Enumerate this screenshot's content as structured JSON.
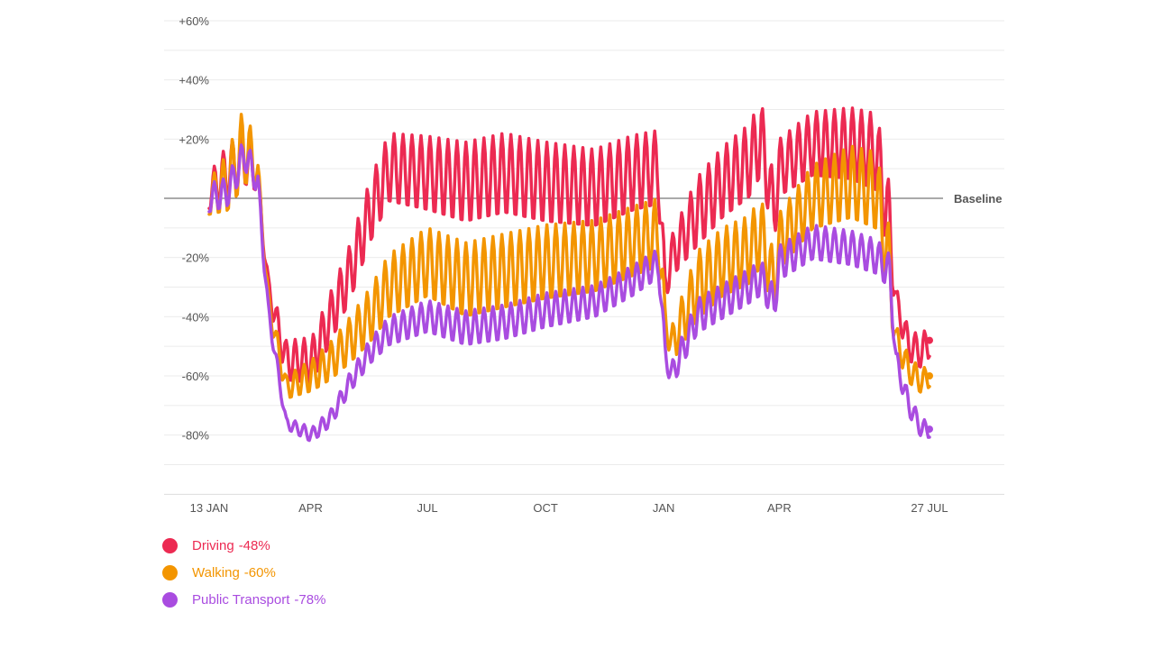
{
  "chart_data": {
    "type": "line",
    "title": "",
    "xlabel": "",
    "ylabel": "",
    "ylim": [
      -100,
      60
    ],
    "grid": true,
    "baseline_label": "Baseline",
    "yticks": [
      {
        "value": 60,
        "label": "+60%"
      },
      {
        "value": 40,
        "label": "+40%"
      },
      {
        "value": 20,
        "label": "+20%"
      },
      {
        "value": -20,
        "label": "-20%"
      },
      {
        "value": -40,
        "label": "-40%"
      },
      {
        "value": -60,
        "label": "-60%"
      },
      {
        "value": -80,
        "label": "-80%"
      }
    ],
    "xticks": [
      {
        "day": 0,
        "label": "13 JAN"
      },
      {
        "day": 79,
        "label": "APR"
      },
      {
        "day": 170,
        "label": "JUL"
      },
      {
        "day": 262,
        "label": "OCT"
      },
      {
        "day": 354,
        "label": "JAN"
      },
      {
        "day": 444,
        "label": "APR"
      },
      {
        "day": 561,
        "label": "27 JUL"
      }
    ],
    "x_range_days": [
      0,
      561
    ],
    "weekly_cycle_days": 7,
    "series": [
      {
        "name": "Driving",
        "latest": "-48%",
        "color": "#ec2a52",
        "base": [
          [
            0,
            2
          ],
          [
            14,
            8
          ],
          [
            28,
            14
          ],
          [
            38,
            6
          ],
          [
            46,
            -30
          ],
          [
            60,
            -55
          ],
          [
            80,
            -55
          ],
          [
            95,
            -40
          ],
          [
            110,
            -25
          ],
          [
            125,
            -5
          ],
          [
            140,
            10
          ],
          [
            170,
            8
          ],
          [
            200,
            5
          ],
          [
            230,
            8
          ],
          [
            262,
            5
          ],
          [
            300,
            3
          ],
          [
            330,
            8
          ],
          [
            350,
            10
          ],
          [
            355,
            -30
          ],
          [
            360,
            -20
          ],
          [
            380,
            -5
          ],
          [
            400,
            5
          ],
          [
            420,
            12
          ],
          [
            430,
            20
          ],
          [
            440,
            -5
          ],
          [
            444,
            10
          ],
          [
            470,
            18
          ],
          [
            500,
            18
          ],
          [
            520,
            15
          ],
          [
            530,
            -10
          ],
          [
            535,
            -35
          ],
          [
            545,
            -50
          ],
          [
            555,
            -52
          ],
          [
            561,
            -48
          ]
        ],
        "amp": [
          [
            0,
            6
          ],
          [
            14,
            10
          ],
          [
            28,
            10
          ],
          [
            38,
            4
          ],
          [
            46,
            4
          ],
          [
            60,
            7
          ],
          [
            100,
            9
          ],
          [
            140,
            12
          ],
          [
            200,
            14
          ],
          [
            262,
            14
          ],
          [
            350,
            13
          ],
          [
            355,
            6
          ],
          [
            380,
            12
          ],
          [
            430,
            13
          ],
          [
            444,
            10
          ],
          [
            530,
            14
          ],
          [
            535,
            5
          ],
          [
            561,
            6
          ]
        ]
      },
      {
        "name": "Walking",
        "latest": "-60%",
        "color": "#f39500",
        "base": [
          [
            0,
            0
          ],
          [
            14,
            5
          ],
          [
            28,
            18
          ],
          [
            38,
            8
          ],
          [
            46,
            -35
          ],
          [
            60,
            -64
          ],
          [
            80,
            -60
          ],
          [
            95,
            -55
          ],
          [
            110,
            -48
          ],
          [
            125,
            -40
          ],
          [
            140,
            -30
          ],
          [
            170,
            -22
          ],
          [
            200,
            -28
          ],
          [
            230,
            -25
          ],
          [
            262,
            -22
          ],
          [
            300,
            -20
          ],
          [
            330,
            -15
          ],
          [
            350,
            -12
          ],
          [
            355,
            -40
          ],
          [
            360,
            -50
          ],
          [
            380,
            -30
          ],
          [
            400,
            -22
          ],
          [
            420,
            -18
          ],
          [
            430,
            -12
          ],
          [
            440,
            -30
          ],
          [
            444,
            -15
          ],
          [
            470,
            0
          ],
          [
            500,
            5
          ],
          [
            520,
            2
          ],
          [
            530,
            -25
          ],
          [
            535,
            -48
          ],
          [
            545,
            -58
          ],
          [
            555,
            -62
          ],
          [
            561,
            -60
          ]
        ],
        "amp": [
          [
            0,
            6
          ],
          [
            14,
            10
          ],
          [
            28,
            14
          ],
          [
            38,
            5
          ],
          [
            46,
            4
          ],
          [
            60,
            4
          ],
          [
            100,
            7
          ],
          [
            140,
            11
          ],
          [
            200,
            13
          ],
          [
            262,
            13
          ],
          [
            350,
            12
          ],
          [
            355,
            5
          ],
          [
            380,
            12
          ],
          [
            430,
            12
          ],
          [
            444,
            10
          ],
          [
            530,
            14
          ],
          [
            535,
            5
          ],
          [
            561,
            4
          ]
        ]
      },
      {
        "name": "Public Transport",
        "latest": "-78%",
        "color": "#a94ce0",
        "base": [
          [
            0,
            0
          ],
          [
            14,
            2
          ],
          [
            28,
            15
          ],
          [
            38,
            5
          ],
          [
            46,
            -38
          ],
          [
            60,
            -76
          ],
          [
            80,
            -80
          ],
          [
            95,
            -74
          ],
          [
            110,
            -62
          ],
          [
            125,
            -52
          ],
          [
            140,
            -45
          ],
          [
            170,
            -40
          ],
          [
            200,
            -44
          ],
          [
            230,
            -42
          ],
          [
            262,
            -38
          ],
          [
            300,
            -35
          ],
          [
            330,
            -28
          ],
          [
            350,
            -22
          ],
          [
            355,
            -52
          ],
          [
            360,
            -60
          ],
          [
            380,
            -40
          ],
          [
            400,
            -35
          ],
          [
            420,
            -30
          ],
          [
            430,
            -27
          ],
          [
            440,
            -36
          ],
          [
            444,
            -22
          ],
          [
            470,
            -15
          ],
          [
            500,
            -17
          ],
          [
            520,
            -20
          ],
          [
            530,
            -25
          ],
          [
            535,
            -55
          ],
          [
            545,
            -70
          ],
          [
            555,
            -78
          ],
          [
            561,
            -78
          ]
        ],
        "amp": [
          [
            0,
            5
          ],
          [
            14,
            5
          ],
          [
            28,
            6
          ],
          [
            38,
            4
          ],
          [
            46,
            3
          ],
          [
            60,
            2
          ],
          [
            100,
            3
          ],
          [
            140,
            5
          ],
          [
            200,
            6
          ],
          [
            262,
            6
          ],
          [
            350,
            5
          ],
          [
            355,
            4
          ],
          [
            380,
            6
          ],
          [
            430,
            6
          ],
          [
            444,
            6
          ],
          [
            530,
            6
          ],
          [
            535,
            4
          ],
          [
            561,
            3
          ]
        ]
      }
    ]
  }
}
